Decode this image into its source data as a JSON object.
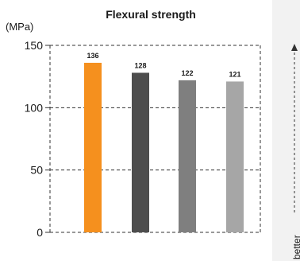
{
  "chart_data": {
    "type": "bar",
    "title": "Flexural strength",
    "unit_label": "(MPa)",
    "categories": [
      "",
      "",
      "",
      ""
    ],
    "values": [
      136,
      128,
      122,
      121
    ],
    "data_labels": [
      "136",
      "128",
      "122",
      "121"
    ],
    "bar_colors": [
      "#f5901e",
      "#4d4d4d",
      "#7f7f7f",
      "#a6a6a6"
    ],
    "ylim": [
      0,
      150
    ],
    "yticks": [
      0,
      50,
      100,
      150
    ],
    "grid": true,
    "grid_style": "dashed",
    "indicator": {
      "label": "better",
      "direction": "up"
    }
  }
}
